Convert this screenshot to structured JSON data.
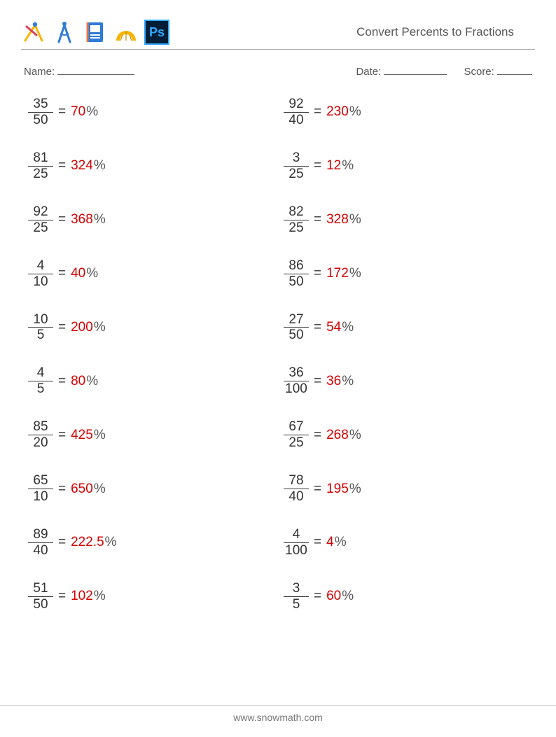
{
  "header": {
    "title": "Convert Percents to Fractions"
  },
  "meta": {
    "name_label": "Name:",
    "date_label": "Date:",
    "score_label": "Score:"
  },
  "icons": {
    "compass_pencil": "compass-pencil-icon",
    "divider": "divider-icon",
    "notebook": "notebook-icon",
    "protractor": "protractor-icon",
    "photoshop": "Ps"
  },
  "colors": {
    "answer": "#d40000",
    "text": "#444444",
    "rule": "#aaaaaa",
    "icon_yellow": "#f5b400",
    "icon_blue": "#2f7bd8",
    "ps_bg": "#001e36",
    "ps_fg": "#31a8ff"
  },
  "problems": {
    "left": [
      {
        "num": "35",
        "den": "50",
        "ans": "70"
      },
      {
        "num": "81",
        "den": "25",
        "ans": "324"
      },
      {
        "num": "92",
        "den": "25",
        "ans": "368"
      },
      {
        "num": "4",
        "den": "10",
        "ans": "40"
      },
      {
        "num": "10",
        "den": "5",
        "ans": "200"
      },
      {
        "num": "4",
        "den": "5",
        "ans": "80"
      },
      {
        "num": "85",
        "den": "20",
        "ans": "425"
      },
      {
        "num": "65",
        "den": "10",
        "ans": "650"
      },
      {
        "num": "89",
        "den": "40",
        "ans": "222.5"
      },
      {
        "num": "51",
        "den": "50",
        "ans": "102"
      }
    ],
    "right": [
      {
        "num": "92",
        "den": "40",
        "ans": "230"
      },
      {
        "num": "3",
        "den": "25",
        "ans": "12"
      },
      {
        "num": "82",
        "den": "25",
        "ans": "328"
      },
      {
        "num": "86",
        "den": "50",
        "ans": "172"
      },
      {
        "num": "27",
        "den": "50",
        "ans": "54"
      },
      {
        "num": "36",
        "den": "100",
        "ans": "36"
      },
      {
        "num": "67",
        "den": "25",
        "ans": "268"
      },
      {
        "num": "78",
        "den": "40",
        "ans": "195"
      },
      {
        "num": "4",
        "den": "100",
        "ans": "4"
      },
      {
        "num": "3",
        "den": "5",
        "ans": "60"
      }
    ]
  },
  "symbols": {
    "equals": "=",
    "percent": "%"
  },
  "footer": {
    "url": "www.snowmath.com"
  }
}
